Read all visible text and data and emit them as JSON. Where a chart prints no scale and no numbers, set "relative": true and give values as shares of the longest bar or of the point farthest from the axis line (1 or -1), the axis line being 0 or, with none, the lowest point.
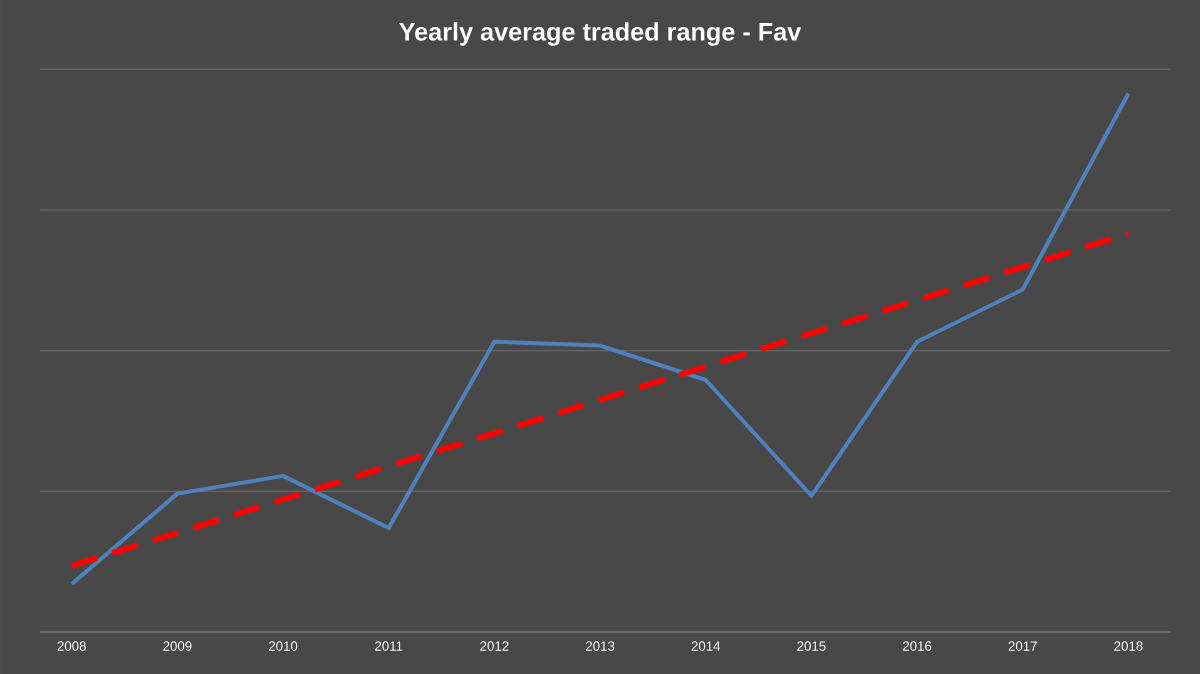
{
  "chart_data": {
    "type": "line",
    "title": "Yearly average traded range - Fav",
    "relative": true,
    "grid": "y",
    "categories": [
      "2008",
      "2009",
      "2010",
      "2011",
      "2012",
      "2013",
      "2014",
      "2015",
      "2016",
      "2017",
      "2018"
    ],
    "series": [
      {
        "color": "#4f81bd",
        "line_style": "solid",
        "values": [
          0.089,
          0.257,
          0.29,
          0.193,
          0.539,
          0.532,
          0.468,
          0.253,
          0.539,
          0.636,
          1.0
        ]
      },
      {
        "color": "#ff0000",
        "line_style": "dashed",
        "values": [
          0.123,
          0.184,
          0.246,
          0.308,
          0.369,
          0.431,
          0.493,
          0.555,
          0.616,
          0.678,
          0.74
        ]
      }
    ]
  }
}
